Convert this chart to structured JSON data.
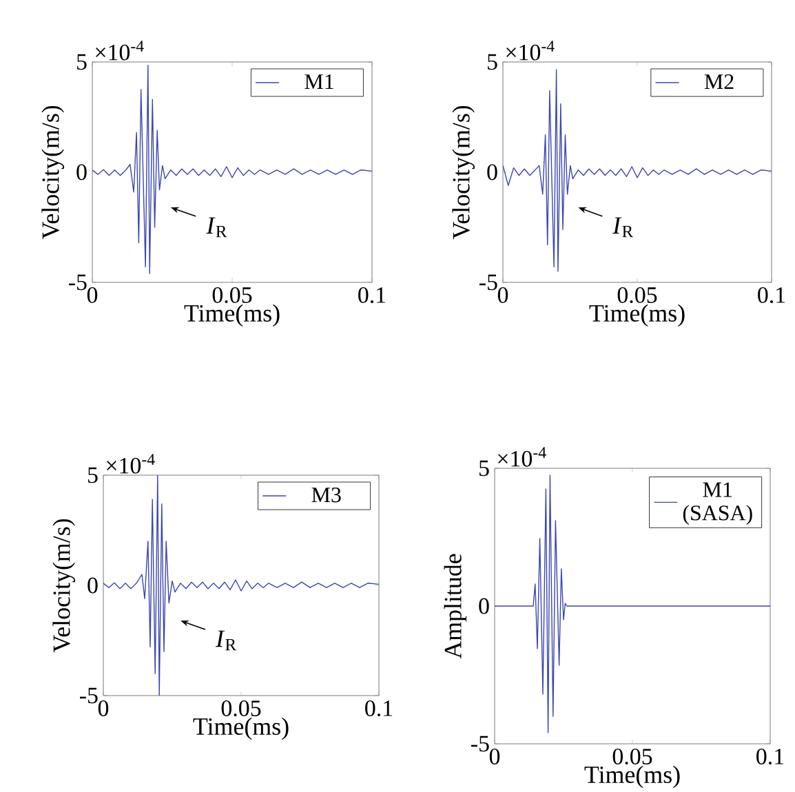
{
  "chart_data": [
    {
      "type": "line",
      "xlabel": "Time(ms)",
      "ylabel": "Velocity(m/s)",
      "xlim": [
        0,
        0.1
      ],
      "ylim": [
        -5,
        5
      ],
      "xticks": [
        0,
        0.05,
        0.1
      ],
      "yticks": [
        -5,
        0,
        5
      ],
      "legend": "top right",
      "marker": "none",
      "line_style": "solid",
      "annotations": [
        "×10$^{-4}$",
        "*I*$_{R}$"
      ],
      "series": [
        {
          "name": "M1",
          "color": "#3a46b0",
          "x": [
            0,
            0.002,
            0.004,
            0.006,
            0.008,
            0.01,
            0.012,
            0.0135,
            0.0148,
            0.0158,
            0.0166,
            0.0174,
            0.019,
            0.0199,
            0.0205,
            0.0215,
            0.0223,
            0.0232,
            0.024,
            0.0251,
            0.026,
            0.028,
            0.03,
            0.032,
            0.034,
            0.036,
            0.038,
            0.04,
            0.042,
            0.044,
            0.046,
            0.048,
            0.05,
            0.052,
            0.054,
            0.056,
            0.058,
            0.06,
            0.063,
            0.066,
            0.069,
            0.072,
            0.075,
            0.078,
            0.081,
            0.084,
            0.087,
            0.09,
            0.093,
            0.096,
            0.1
          ],
          "values": [
            0.1,
            -0.1,
            0.12,
            -0.15,
            0.1,
            -0.15,
            0.1,
            0.35,
            -0.9,
            1.8,
            -3.2,
            3.75,
            -4.3,
            4.85,
            -4.6,
            3.3,
            -2.5,
            1.9,
            -0.8,
            0.3,
            -0.3,
            0.1,
            -0.15,
            0.15,
            -0.1,
            0.15,
            -0.15,
            0.1,
            -0.15,
            0.15,
            -0.2,
            0.25,
            -0.25,
            0.2,
            -0.15,
            0.1,
            -0.1,
            0.1,
            -0.1,
            0.1,
            -0.1,
            0.15,
            -0.1,
            0.1,
            -0.1,
            0.1,
            -0.1,
            0.1,
            -0.1,
            0.1,
            0.05
          ]
        }
      ]
    },
    {
      "type": "line",
      "xlabel": "Time(ms)",
      "ylabel": "Velocity(m/s)",
      "xlim": [
        0,
        0.1
      ],
      "ylim": [
        -5,
        5
      ],
      "xticks": [
        0,
        0.05,
        0.1
      ],
      "yticks": [
        -5,
        0,
        5
      ],
      "legend": "top right",
      "marker": "none",
      "line_style": "solid",
      "annotations": [
        "×10$^{-4}$",
        "*I*$_{R}$"
      ],
      "series": [
        {
          "name": "M2",
          "color": "#3a46b0",
          "x": [
            0,
            0.002,
            0.004,
            0.006,
            0.008,
            0.01,
            0.012,
            0.0135,
            0.0148,
            0.0158,
            0.0166,
            0.0174,
            0.019,
            0.0199,
            0.0205,
            0.0215,
            0.0223,
            0.0232,
            0.024,
            0.0251,
            0.026,
            0.028,
            0.03,
            0.032,
            0.034,
            0.036,
            0.038,
            0.04,
            0.042,
            0.044,
            0.046,
            0.048,
            0.05,
            0.052,
            0.054,
            0.056,
            0.058,
            0.06,
            0.063,
            0.066,
            0.069,
            0.072,
            0.075,
            0.078,
            0.081,
            0.084,
            0.087,
            0.09,
            0.093,
            0.096,
            0.1
          ],
          "values": [
            0.3,
            -0.6,
            0.2,
            -0.15,
            0.15,
            -0.15,
            0.1,
            0.3,
            -1.0,
            1.7,
            -3.3,
            3.7,
            -4.3,
            4.65,
            -4.5,
            3.1,
            -2.6,
            1.7,
            -1.0,
            0.3,
            -0.3,
            0.1,
            -0.15,
            0.15,
            -0.1,
            0.15,
            -0.15,
            0.1,
            -0.15,
            0.15,
            -0.2,
            0.25,
            -0.25,
            0.2,
            -0.15,
            0.1,
            -0.1,
            0.1,
            -0.1,
            0.1,
            -0.1,
            0.15,
            -0.1,
            0.1,
            -0.1,
            0.1,
            -0.1,
            0.1,
            -0.1,
            0.1,
            0.05
          ]
        }
      ]
    },
    {
      "type": "line",
      "xlabel": "Time(ms)",
      "ylabel": "Velocity(m/s)",
      "xlim": [
        0,
        0.1
      ],
      "ylim": [
        -5,
        5
      ],
      "xticks": [
        0,
        0.05,
        0.1
      ],
      "yticks": [
        -5,
        0,
        5
      ],
      "legend": "top right",
      "marker": "none",
      "line_style": "solid",
      "annotations": [
        "×10$^{-4}$",
        "*I*$_{R}$"
      ],
      "series": [
        {
          "name": "M3",
          "color": "#3a46b0",
          "x": [
            0,
            0.002,
            0.004,
            0.006,
            0.008,
            0.01,
            0.012,
            0.014,
            0.015,
            0.0162,
            0.017,
            0.0178,
            0.0188,
            0.0197,
            0.0203,
            0.0212,
            0.022,
            0.0228,
            0.0238,
            0.025,
            0.026,
            0.028,
            0.03,
            0.032,
            0.034,
            0.036,
            0.038,
            0.04,
            0.042,
            0.044,
            0.046,
            0.048,
            0.05,
            0.052,
            0.054,
            0.056,
            0.058,
            0.06,
            0.063,
            0.066,
            0.069,
            0.072,
            0.075,
            0.078,
            0.081,
            0.084,
            0.087,
            0.09,
            0.093,
            0.096,
            0.1
          ],
          "values": [
            0.1,
            -0.1,
            0.12,
            -0.15,
            0.1,
            -0.15,
            0.1,
            0.5,
            -0.6,
            2.0,
            -2.8,
            3.9,
            -4.0,
            5.0,
            -5.0,
            3.7,
            -3.0,
            2.0,
            -0.8,
            0.2,
            -0.3,
            0.1,
            -0.15,
            0.15,
            -0.1,
            0.15,
            -0.15,
            0.1,
            -0.15,
            0.15,
            -0.2,
            0.25,
            -0.25,
            0.2,
            -0.15,
            0.1,
            -0.1,
            0.1,
            -0.1,
            0.1,
            -0.1,
            0.15,
            -0.1,
            0.1,
            -0.1,
            0.1,
            -0.1,
            0.1,
            -0.1,
            0.1,
            0.05
          ]
        }
      ]
    },
    {
      "type": "line",
      "xlabel": "Time(ms)",
      "ylabel": "Amplitude",
      "xlim": [
        0,
        0.1
      ],
      "ylim": [
        -5,
        5
      ],
      "xticks": [
        0,
        0.05,
        0.1
      ],
      "yticks": [
        -5,
        0,
        5
      ],
      "legend": "top right",
      "marker": "none",
      "line_style": "solid",
      "annotations": [
        "×10$^{-4}$"
      ],
      "series": [
        {
          "name": "M1 (SASA)",
          "color": "#3a46b0",
          "x": [
            0,
            0.014,
            0.0147,
            0.0155,
            0.0164,
            0.0175,
            0.0186,
            0.0194,
            0.0201,
            0.0212,
            0.0221,
            0.0234,
            0.0242,
            0.025,
            0.0256,
            0.0262,
            0.1
          ],
          "values": [
            0,
            0,
            0.8,
            -1.55,
            2.45,
            -3.2,
            4.25,
            -4.6,
            4.75,
            -4.0,
            3.1,
            -2.15,
            1.35,
            -0.5,
            0.1,
            0,
            0
          ]
        }
      ]
    }
  ]
}
